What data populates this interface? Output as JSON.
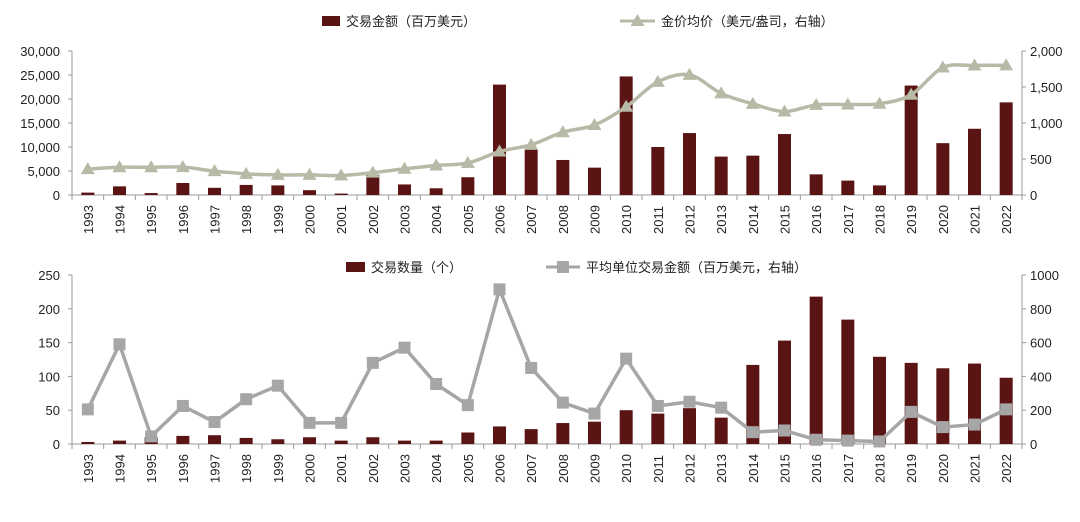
{
  "chart_data": [
    {
      "type": "bar+line",
      "categories": [
        "1993",
        "1994",
        "1995",
        "1996",
        "1997",
        "1998",
        "1999",
        "2000",
        "2001",
        "2002",
        "2003",
        "2004",
        "2005",
        "2006",
        "2007",
        "2008",
        "2009",
        "2010",
        "2011",
        "2012",
        "2013",
        "2014",
        "2015",
        "2016",
        "2017",
        "2018",
        "2019",
        "2020",
        "2021",
        "2022"
      ],
      "series": [
        {
          "name": "交易金额（百万美元）",
          "type": "bar",
          "axis": "left",
          "color": "#5a1414",
          "values": [
            500,
            1800,
            400,
            2500,
            1500,
            2100,
            2000,
            1000,
            300,
            4200,
            2200,
            1400,
            3700,
            23000,
            9500,
            7300,
            5700,
            24700,
            10000,
            12900,
            8000,
            8200,
            12700,
            4300,
            3000,
            2000,
            22800,
            10800,
            13800,
            19300
          ]
        },
        {
          "name": "金价均价（美元/盎司，右轴）",
          "type": "line",
          "marker": "triangle",
          "axis": "right",
          "color": "#b8b9a7",
          "values": [
            360,
            385,
            385,
            388,
            331,
            294,
            279,
            279,
            271,
            310,
            364,
            410,
            445,
            604,
            697,
            872,
            972,
            1225,
            1572,
            1669,
            1411,
            1266,
            1160,
            1251,
            1257,
            1268,
            1393,
            1770,
            1799,
            1800
          ]
        }
      ],
      "left_axis": {
        "ylim": [
          0,
          30000
        ],
        "ticks": [
          "0",
          "5,000",
          "10,000",
          "15,000",
          "20,000",
          "25,000",
          "30,000"
        ]
      },
      "right_axis": {
        "ylim": [
          0,
          2000
        ],
        "ticks": [
          "0",
          "500",
          "1,000",
          "1,500",
          "2,000"
        ]
      },
      "legend": "top-center",
      "grid": false
    },
    {
      "type": "bar+line",
      "categories": [
        "1993",
        "1994",
        "1995",
        "1996",
        "1997",
        "1998",
        "1999",
        "2000",
        "2001",
        "2002",
        "2003",
        "2004",
        "2005",
        "2006",
        "2007",
        "2008",
        "2009",
        "2010",
        "2011",
        "2012",
        "2013",
        "2014",
        "2015",
        "2016",
        "2017",
        "2018",
        "2019",
        "2020",
        "2021",
        "2022"
      ],
      "series": [
        {
          "name": "交易数量（个）",
          "type": "bar",
          "axis": "left",
          "color": "#5a1414",
          "values": [
            3,
            5,
            10,
            12,
            13,
            9,
            7,
            10,
            5,
            10,
            5,
            5,
            17,
            26,
            22,
            31,
            33,
            50,
            45,
            53,
            39,
            117,
            153,
            218,
            184,
            129,
            120,
            112,
            119,
            98
          ]
        },
        {
          "name": "平均单位交易金额（百万美元，右轴）",
          "type": "line",
          "marker": "square",
          "axis": "right",
          "color": "#a6a6a6",
          "values": [
            205,
            590,
            45,
            225,
            130,
            265,
            345,
            125,
            125,
            480,
            570,
            355,
            230,
            915,
            450,
            245,
            180,
            505,
            225,
            250,
            215,
            70,
            80,
            25,
            20,
            15,
            190,
            100,
            115,
            205
          ]
        }
      ],
      "left_axis": {
        "ylim": [
          0,
          250
        ],
        "ticks": [
          "0",
          "50",
          "100",
          "150",
          "200",
          "250"
        ]
      },
      "right_axis": {
        "ylim": [
          0,
          1000
        ],
        "ticks": [
          "0",
          "200",
          "400",
          "600",
          "800",
          "1000"
        ]
      },
      "legend": "top-center",
      "grid": false
    }
  ]
}
